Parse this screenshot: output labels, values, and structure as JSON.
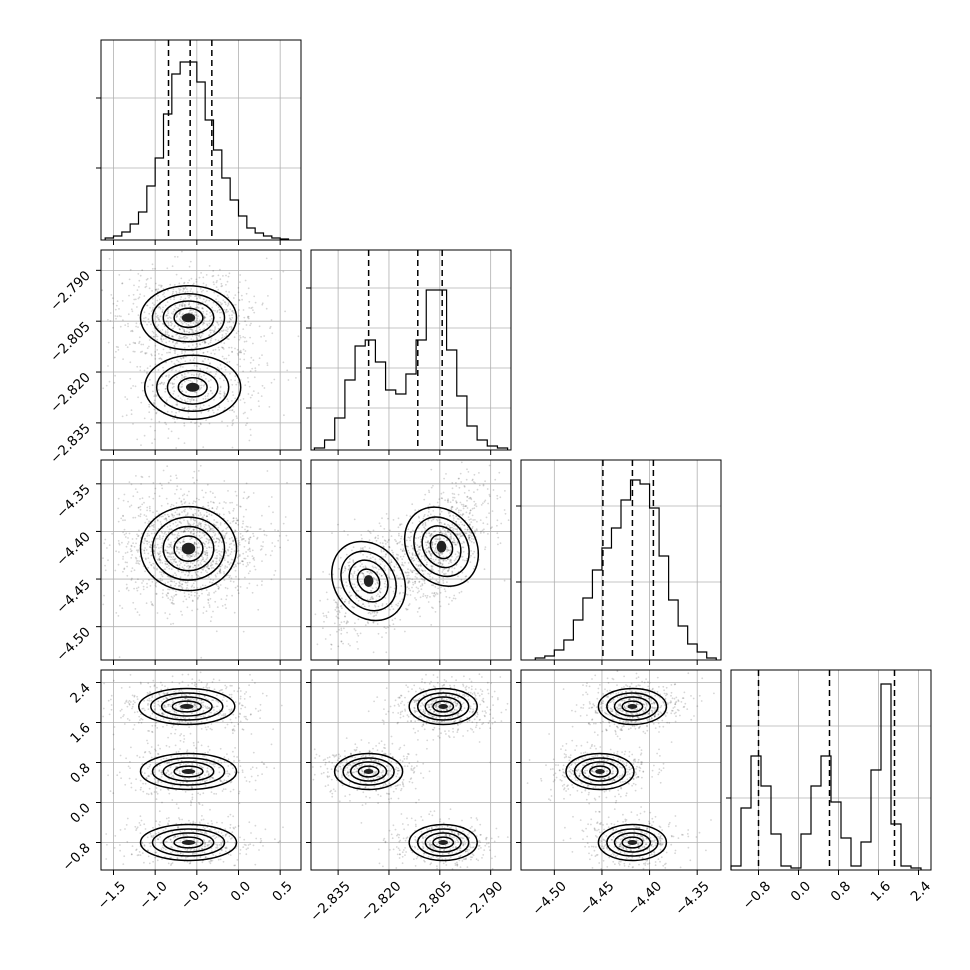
{
  "chart_data": {
    "type": "corner",
    "title": "",
    "parameters": [
      {
        "range": [
          -1.65,
          0.75
        ],
        "ticks": [
          -1.5,
          -1.0,
          -0.5,
          0.0,
          0.5
        ],
        "tick_labels": [
          "−1.5",
          "−1.0",
          "−0.5",
          "0.0",
          "0.5"
        ],
        "quantiles": [
          -0.84,
          -0.58,
          -0.32
        ]
      },
      {
        "range": [
          -2.843,
          -2.784
        ],
        "ticks": [
          -2.835,
          -2.82,
          -2.805,
          -2.79
        ],
        "tick_labels": [
          "−2.835",
          "−2.820",
          "−2.805",
          "−2.790"
        ],
        "quantiles": [
          -2.826,
          -2.8115,
          -2.8043
        ]
      },
      {
        "range": [
          -4.535,
          -4.325
        ],
        "ticks": [
          -4.5,
          -4.45,
          -4.4,
          -4.35
        ],
        "tick_labels": [
          "−4.50",
          "−4.45",
          "−4.40",
          "−4.35"
        ],
        "quantiles": [
          -4.449,
          -4.418,
          -4.396
        ]
      },
      {
        "range": [
          -1.35,
          2.65
        ],
        "ticks": [
          -0.8,
          0.0,
          0.8,
          1.6,
          2.4
        ],
        "tick_labels": [
          "−0.8",
          "0.0",
          "0.8",
          "1.6",
          "2.4"
        ],
        "quantiles": [
          -0.8,
          0.62,
          1.92
        ]
      }
    ],
    "histograms": [
      {
        "param": 0,
        "y_grid": [
          0.36,
          0.71
        ],
        "bins": [
          -1.6,
          -1.5,
          -1.4,
          -1.3,
          -1.2,
          -1.1,
          -1.0,
          -0.9,
          -0.8,
          -0.7,
          -0.6,
          -0.5,
          -0.4,
          -0.3,
          -0.2,
          -0.1,
          0.0,
          0.1,
          0.2,
          0.3,
          0.4,
          0.5,
          0.6
        ],
        "counts": [
          0.01,
          0.02,
          0.04,
          0.08,
          0.14,
          0.27,
          0.41,
          0.63,
          0.83,
          0.89,
          0.89,
          0.79,
          0.6,
          0.45,
          0.31,
          0.2,
          0.12,
          0.06,
          0.035,
          0.02,
          0.01,
          0.005
        ]
      },
      {
        "param": 1,
        "y_grid": [
          0.21,
          0.41,
          0.61,
          0.81
        ],
        "bins": [
          -2.842,
          -2.839,
          -2.836,
          -2.833,
          -2.83,
          -2.827,
          -2.824,
          -2.821,
          -2.818,
          -2.815,
          -2.812,
          -2.809,
          -2.806,
          -2.803,
          -2.8,
          -2.797,
          -2.794,
          -2.791,
          -2.788,
          -2.785
        ],
        "counts": [
          0.01,
          0.05,
          0.16,
          0.35,
          0.52,
          0.55,
          0.44,
          0.3,
          0.28,
          0.38,
          0.55,
          0.8,
          0.8,
          0.5,
          0.27,
          0.12,
          0.05,
          0.02,
          0.01
        ]
      },
      {
        "param": 2,
        "y_grid": [
          0.39,
          0.77
        ],
        "bins": [
          -4.52,
          -4.51,
          -4.5,
          -4.49,
          -4.48,
          -4.47,
          -4.46,
          -4.45,
          -4.44,
          -4.43,
          -4.42,
          -4.41,
          -4.4,
          -4.39,
          -4.38,
          -4.37,
          -4.36,
          -4.35,
          -4.34,
          -4.33
        ],
        "counts": [
          0.01,
          0.02,
          0.05,
          0.1,
          0.2,
          0.31,
          0.45,
          0.56,
          0.66,
          0.8,
          0.9,
          0.88,
          0.76,
          0.52,
          0.3,
          0.17,
          0.08,
          0.04,
          0.01
        ]
      },
      {
        "param": 3,
        "y_grid": [
          0.36,
          0.72
        ],
        "bins": [
          -1.35,
          -1.15,
          -0.95,
          -0.75,
          -0.55,
          -0.35,
          -0.15,
          0.05,
          0.25,
          0.45,
          0.65,
          0.85,
          1.05,
          1.25,
          1.45,
          1.65,
          1.85,
          2.05,
          2.25,
          2.45
        ],
        "counts": [
          0.02,
          0.31,
          0.57,
          0.42,
          0.18,
          0.02,
          0.01,
          0.18,
          0.42,
          0.57,
          0.34,
          0.16,
          0.02,
          0.14,
          0.5,
          0.93,
          0.23,
          0.02,
          0.01
        ]
      }
    ],
    "joint_2d": [
      {
        "x_param": 0,
        "y_param": 1,
        "modes": [
          {
            "x": -0.6,
            "y": -2.804,
            "weight": 0.65
          },
          {
            "x": -0.55,
            "y": -2.8245,
            "weight": 0.35
          }
        ]
      },
      {
        "x_param": 0,
        "y_param": 2,
        "modes": [
          {
            "x": -0.6,
            "y": -4.418,
            "weight": 1.0
          }
        ]
      },
      {
        "x_param": 1,
        "y_param": 2,
        "modes": [
          {
            "x": -2.8045,
            "y": -4.416,
            "weight": 0.65
          },
          {
            "x": -2.826,
            "y": -4.452,
            "weight": 0.35
          }
        ]
      },
      {
        "x_param": 0,
        "y_param": 3,
        "modes": [
          {
            "x": -0.62,
            "y": 1.92,
            "weight": 0.4
          },
          {
            "x": -0.6,
            "y": 0.62,
            "weight": 0.3
          },
          {
            "x": -0.6,
            "y": -0.8,
            "weight": 0.3
          }
        ]
      },
      {
        "x_param": 1,
        "y_param": 3,
        "modes": [
          {
            "x": -2.804,
            "y": 1.92,
            "weight": 0.4
          },
          {
            "x": -2.826,
            "y": 0.62,
            "weight": 0.3
          },
          {
            "x": -2.804,
            "y": -0.8,
            "weight": 0.3
          }
        ]
      },
      {
        "x_param": 2,
        "y_param": 3,
        "modes": [
          {
            "x": -4.418,
            "y": 1.92,
            "weight": 0.4
          },
          {
            "x": -4.452,
            "y": 0.62,
            "weight": 0.3
          },
          {
            "x": -4.418,
            "y": -0.8,
            "weight": 0.3
          }
        ]
      }
    ],
    "grid": true,
    "legend": "none"
  }
}
